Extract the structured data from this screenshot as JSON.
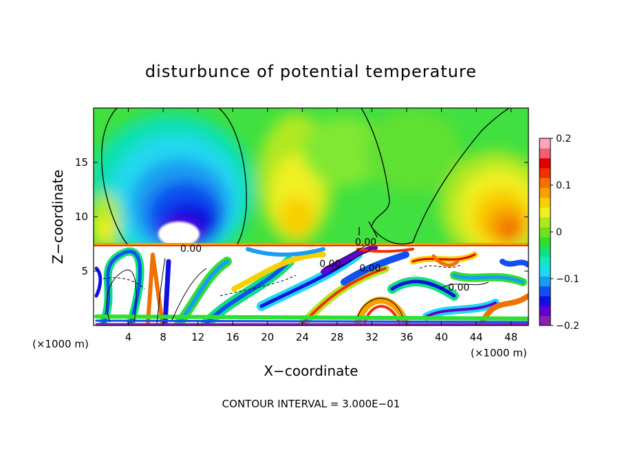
{
  "chart_data": {
    "type": "heatmap",
    "title": "disturbunce of potential temperature",
    "xlabel": "X−coordinate",
    "ylabel": "Z−coordinate",
    "x_unit_left": "(×1000 m)",
    "x_unit_right": "(×1000 m)",
    "footer": "CONTOUR INTERVAL = 3.000E−01",
    "xlim": [
      0,
      50
    ],
    "ylim": [
      0,
      20
    ],
    "x_ticks": [
      "4",
      "8",
      "12",
      "16",
      "20",
      "24",
      "28",
      "32",
      "36",
      "40",
      "44",
      "48"
    ],
    "y_ticks": [
      "5",
      "10",
      "15"
    ],
    "colorbar": {
      "ticks": [
        "0.2",
        "0.1",
        "0",
        "−0.1",
        "−0.2"
      ],
      "range": [
        -0.2,
        0.2
      ]
    },
    "contour_labels": [
      {
        "text": "0.00",
        "x": 11.2,
        "z": 7.1
      },
      {
        "text": "0.00",
        "x": 31.3,
        "z": 7.7
      },
      {
        "text": "0.00",
        "x": 27.2,
        "z": 5.7
      },
      {
        "text": "0.00",
        "x": 31.8,
        "z": 5.3
      },
      {
        "text": "0.00",
        "x": 42.0,
        "z": 3.5
      }
    ],
    "grid": false,
    "legend": "colorbar-right"
  },
  "colors": {
    "scale": [
      "#8a20b0",
      "#6000d0",
      "#1010e0",
      "#1050f0",
      "#1c9cf0",
      "#20d8f0",
      "#10e8c0",
      "#10e080",
      "#30e030",
      "#70e020",
      "#b0e820",
      "#f0f020",
      "#f8d000",
      "#f8a000",
      "#f87000",
      "#f03000",
      "#e00000",
      "#f06070",
      "#f8a8b8"
    ]
  }
}
